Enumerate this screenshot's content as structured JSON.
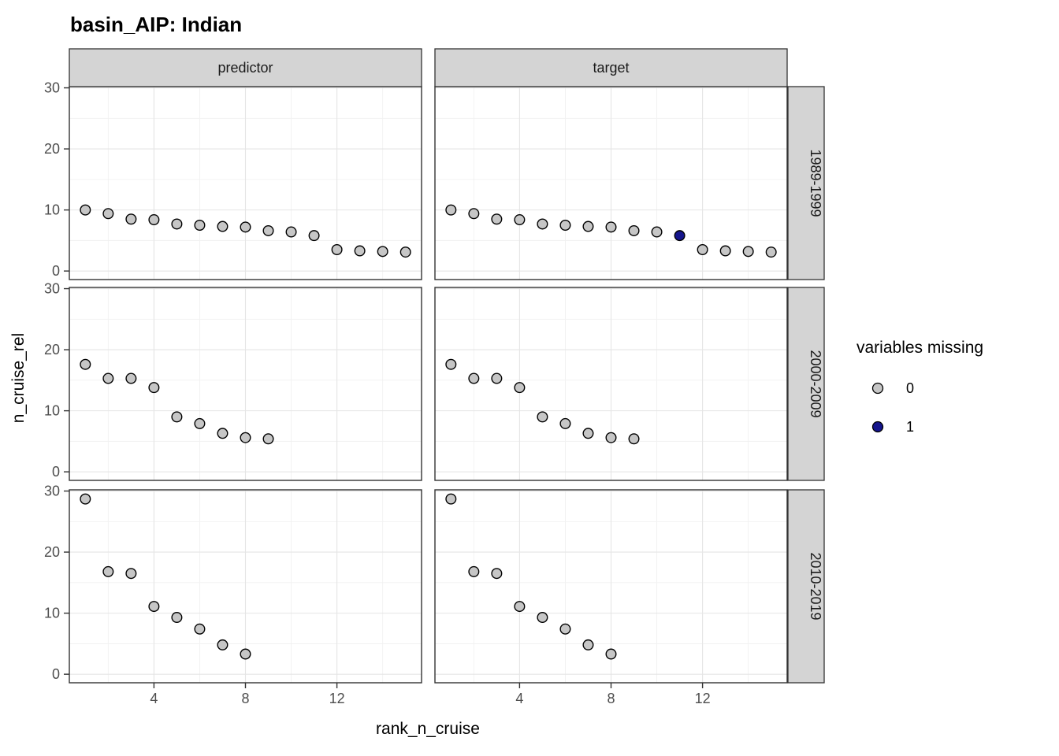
{
  "title": "basin_AIP: Indian",
  "axes": {
    "x_title": "rank_n_cruise",
    "y_title": "n_cruise_rel"
  },
  "facets": {
    "columns": [
      "predictor",
      "target"
    ],
    "rows": [
      "1989-1999",
      "2000-2009",
      "2010-2019"
    ]
  },
  "legend": {
    "title": "variables missing",
    "entries": [
      {
        "label": "0",
        "value": 0,
        "color": "#c6c6c6"
      },
      {
        "label": "1",
        "value": 1,
        "color": "#15158c"
      }
    ]
  },
  "style": {
    "strip_bg": "#d4d4d4",
    "strip_border": "#333333",
    "panel_bg": "#ffffff",
    "panel_border": "#333333",
    "grid_major": "#e5e5e5",
    "grid_minor": "#f1f1f1",
    "axis_text": "#4d4d4d",
    "tick_color": "#333333",
    "point_stroke": "#000000"
  },
  "chart_data": {
    "type": "scatter",
    "title": "basin_AIP: Indian",
    "xlabel": "rank_n_cruise",
    "ylabel": "n_cruise_rel",
    "x_ticks": [
      4,
      8,
      12
    ],
    "y_ticks": [
      0,
      10,
      20,
      30
    ],
    "x_minor": [
      2,
      6,
      10,
      14
    ],
    "y_minor": [
      5,
      15,
      25
    ],
    "xlim": [
      0.3,
      15.7
    ],
    "ylim": [
      -1.4,
      30.2
    ],
    "grid": true,
    "legend_position": "right",
    "facet_cols": [
      "predictor",
      "target"
    ],
    "facet_rows": [
      "1989-1999",
      "2000-2009",
      "2010-2019"
    ],
    "color_variable": "variables missing",
    "panels": [
      {
        "facet_col": "predictor",
        "facet_row": "1989-1999",
        "x": [
          1,
          2,
          3,
          4,
          5,
          6,
          7,
          8,
          9,
          10,
          11,
          12,
          13,
          14,
          15
        ],
        "y": [
          10.0,
          9.4,
          8.5,
          8.4,
          7.7,
          7.5,
          7.3,
          7.2,
          6.6,
          6.4,
          5.8,
          3.5,
          3.3,
          3.2,
          3.1
        ],
        "missing": [
          0,
          0,
          0,
          0,
          0,
          0,
          0,
          0,
          0,
          0,
          0,
          0,
          0,
          0,
          0
        ]
      },
      {
        "facet_col": "target",
        "facet_row": "1989-1999",
        "x": [
          1,
          2,
          3,
          4,
          5,
          6,
          7,
          8,
          9,
          10,
          11,
          12,
          13,
          14,
          15
        ],
        "y": [
          10.0,
          9.4,
          8.5,
          8.4,
          7.7,
          7.5,
          7.3,
          7.2,
          6.6,
          6.4,
          5.8,
          3.5,
          3.3,
          3.2,
          3.1
        ],
        "missing": [
          0,
          0,
          0,
          0,
          0,
          0,
          0,
          0,
          0,
          0,
          1,
          0,
          0,
          0,
          0
        ]
      },
      {
        "facet_col": "predictor",
        "facet_row": "2000-2009",
        "x": [
          1,
          2,
          3,
          4,
          5,
          6,
          7,
          8,
          9
        ],
        "y": [
          17.6,
          15.3,
          15.3,
          13.8,
          9.0,
          7.9,
          6.3,
          5.6,
          5.4
        ],
        "missing": [
          0,
          0,
          0,
          0,
          0,
          0,
          0,
          0,
          0
        ]
      },
      {
        "facet_col": "target",
        "facet_row": "2000-2009",
        "x": [
          1,
          2,
          3,
          4,
          5,
          6,
          7,
          8,
          9
        ],
        "y": [
          17.6,
          15.3,
          15.3,
          13.8,
          9.0,
          7.9,
          6.3,
          5.6,
          5.4
        ],
        "missing": [
          0,
          0,
          0,
          0,
          0,
          0,
          0,
          0,
          0
        ]
      },
      {
        "facet_col": "predictor",
        "facet_row": "2010-2019",
        "x": [
          1,
          2,
          3,
          4,
          5,
          6,
          7,
          8
        ],
        "y": [
          28.7,
          16.8,
          16.5,
          11.1,
          9.3,
          7.4,
          4.8,
          3.3
        ],
        "missing": [
          0,
          0,
          0,
          0,
          0,
          0,
          0,
          0
        ]
      },
      {
        "facet_col": "target",
        "facet_row": "2010-2019",
        "x": [
          1,
          2,
          3,
          4,
          5,
          6,
          7,
          8
        ],
        "y": [
          28.7,
          16.8,
          16.5,
          11.1,
          9.3,
          7.4,
          4.8,
          3.3
        ],
        "missing": [
          0,
          0,
          0,
          0,
          0,
          0,
          0,
          0
        ]
      }
    ]
  }
}
